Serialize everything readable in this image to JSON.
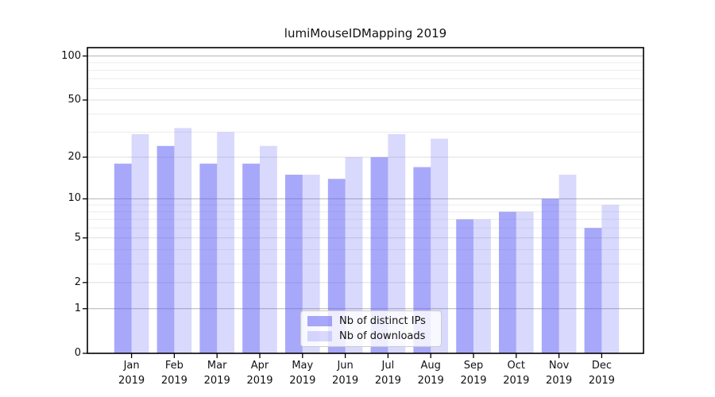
{
  "chart_data": {
    "type": "bar",
    "title": "lumiMouseIDMapping 2019",
    "xlabel": "",
    "ylabel": "",
    "categories": [
      "Jan",
      "Feb",
      "Mar",
      "Apr",
      "May",
      "Jun",
      "Jul",
      "Aug",
      "Sep",
      "Oct",
      "Nov",
      "Dec"
    ],
    "xtick_year_line": "2019",
    "series": [
      {
        "name": "Nb of distinct IPs",
        "color": "rgba(90,90,245,0.53)",
        "values": [
          18,
          24,
          18,
          18,
          15,
          14,
          20,
          17,
          7,
          8,
          10,
          6
        ]
      },
      {
        "name": "Nb of downloads",
        "color": "rgba(90,90,245,0.23)",
        "values": [
          29,
          32,
          30,
          24,
          15,
          20,
          29,
          27,
          7,
          8,
          15,
          9
        ]
      }
    ],
    "yscale": "log1p",
    "ylim": [
      0,
      114
    ],
    "yticks": [
      0,
      1,
      2,
      5,
      10,
      20,
      50,
      100
    ],
    "ytick_labels": [
      "0",
      "1",
      "2",
      "5",
      "10",
      "20",
      "50",
      "100"
    ],
    "minor_gridlines": [
      3,
      4,
      6,
      7,
      8,
      9,
      30,
      40,
      60,
      70,
      80,
      90
    ],
    "emphasized_gridlines": [
      1,
      10,
      100
    ],
    "grid": true,
    "legend_position": "lower center"
  },
  "colors": {
    "spine": "#000000",
    "grid_major_emphasized": "#b4b4b4",
    "grid_major": "#dedede",
    "grid_minor": "#ececec",
    "legend_border": "#cccccc"
  }
}
